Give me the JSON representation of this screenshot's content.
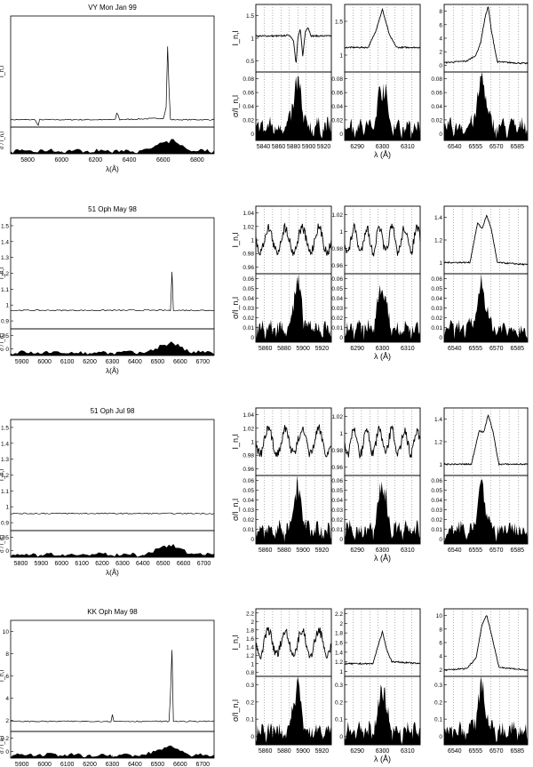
{
  "figure": {
    "rows": [
      {
        "title": "VY Mon Jan 99",
        "overview": {
          "xlabel": "λ(Å)",
          "ylabel_top": "I_n,l",
          "ylabel_bottom": "σ / I_n,l",
          "xticks": [
            "5800",
            "6000",
            "6200",
            "6400",
            "6600",
            "6800"
          ],
          "yticks_top": [],
          "yticks_bottom": []
        },
        "zooms": [
          {
            "xticks": [
              "5840",
              "5860",
              "5880",
              "5900",
              "5920"
            ],
            "yticks_top": [
              "0.5",
              "1",
              "1.5"
            ],
            "yticks_bottom": [
              "0",
              "0.02",
              "0.04",
              "0.06",
              "0.08"
            ],
            "ylabel_top": "I_n,l",
            "ylabel_bottom": "σ/I_n,l"
          },
          {
            "xticks": [
              "6290",
              "6300",
              "6310"
            ],
            "yticks_top": [
              "1",
              "1.5"
            ],
            "yticks_bottom": [
              "0",
              "0.02",
              "0.04",
              "0.06",
              "0.08"
            ]
          },
          {
            "xticks": [
              "6540",
              "6555",
              "6570",
              "6585"
            ],
            "yticks_top": [
              "0",
              "2",
              "4",
              "6",
              "8"
            ],
            "yticks_bottom": [
              "0",
              "0.02",
              "0.04",
              "0.06",
              "0.08"
            ]
          }
        ]
      },
      {
        "title": "51 Oph May 98",
        "overview": {
          "xlabel": "λ(Å)",
          "ylabel_top": "I_n,l",
          "ylabel_bottom": "σ / I_n,l",
          "xticks": [
            "5900",
            "6000",
            "6100",
            "6200",
            "6300",
            "6400",
            "6500",
            "6600",
            "6700"
          ],
          "yticks_top": [
            "0.9",
            "1",
            "1.1",
            "1.2",
            "1.3",
            "1.4",
            "1.5"
          ],
          "yticks_bottom": [
            "0",
            "0.05"
          ]
        },
        "zooms": [
          {
            "xticks": [
              "5860",
              "5880",
              "5900",
              "5920"
            ],
            "yticks_top": [
              "0.96",
              "0.98",
              "1",
              "1.02",
              "1.04"
            ],
            "yticks_bottom": [
              "0",
              "0.01",
              "0.02",
              "0.03",
              "0.04",
              "0.05",
              "0.06"
            ],
            "ylabel_top": "I_n,l",
            "ylabel_bottom": "σ/I_n,l"
          },
          {
            "xticks": [
              "6290",
              "6300",
              "6310"
            ],
            "yticks_top": [
              "0.96",
              "0.98",
              "1",
              "1.02"
            ],
            "yticks_bottom": [
              "0",
              "0.01",
              "0.02",
              "0.03",
              "0.04",
              "0.05",
              "0.06"
            ]
          },
          {
            "xticks": [
              "6540",
              "6555",
              "6570",
              "6585"
            ],
            "yticks_top": [
              "1",
              "1.2",
              "1.4"
            ],
            "yticks_bottom": [
              "0",
              "0.01",
              "0.02",
              "0.03",
              "0.04",
              "0.05",
              "0.06"
            ]
          }
        ]
      },
      {
        "title": "51 Oph Jul 98",
        "overview": {
          "xlabel": "λ(Å)",
          "ylabel_top": "I_n,l",
          "ylabel_bottom": "σ / I_n,l",
          "xticks": [
            "5800",
            "5900",
            "6000",
            "6100",
            "6200",
            "6300",
            "6400",
            "6500",
            "6600",
            "6700"
          ],
          "yticks_top": [
            "0.9",
            "1",
            "1.1",
            "1.2",
            "1.3",
            "1.4",
            "1.5"
          ],
          "yticks_bottom": [
            "0",
            "0.05"
          ]
        },
        "zooms": [
          {
            "xticks": [
              "5860",
              "5880",
              "5900",
              "5920"
            ],
            "yticks_top": [
              "0.96",
              "0.98",
              "1",
              "1.02",
              "1.04"
            ],
            "yticks_bottom": [
              "0",
              "0.01",
              "0.02",
              "0.03",
              "0.04",
              "0.05",
              "0.06"
            ],
            "ylabel_top": "I_n,l",
            "ylabel_bottom": "σ/I_n,l"
          },
          {
            "xticks": [
              "6290",
              "6300",
              "6310"
            ],
            "yticks_top": [
              "0.96",
              "0.98",
              "1",
              "1.02"
            ],
            "yticks_bottom": [
              "0",
              "0.01",
              "0.02",
              "0.03",
              "0.04",
              "0.05",
              "0.06"
            ]
          },
          {
            "xticks": [
              "6540",
              "6555",
              "6570",
              "6585"
            ],
            "yticks_top": [
              "1",
              "1.2",
              "1.4"
            ],
            "yticks_bottom": [
              "0",
              "0.01",
              "0.02",
              "0.03",
              "0.04",
              "0.05",
              "0.06"
            ]
          }
        ]
      },
      {
        "title": "KK Oph May 98",
        "overview": {
          "xlabel": "λ(Å)",
          "ylabel_top": "I_n,l",
          "ylabel_bottom": "σ / I_n,l",
          "xticks": [
            "5900",
            "6000",
            "6100",
            "6200",
            "6300",
            "6400",
            "6500",
            "6600",
            "6700"
          ],
          "yticks_top": [
            "2",
            "4",
            "6",
            "8",
            "10"
          ],
          "yticks_bottom": [
            "0",
            "0.2"
          ]
        },
        "zooms": [
          {
            "xticks": [
              "5860",
              "5880",
              "5900",
              "5920"
            ],
            "yticks_top": [
              "0.8",
              "1",
              "1.2",
              "1.4",
              "1.6",
              "1.8",
              "2",
              "2.2"
            ],
            "yticks_bottom": [
              "0",
              "0.1",
              "0.2",
              "0.3"
            ],
            "ylabel_top": "I_n,l",
            "ylabel_bottom": "σ/I_n,l"
          },
          {
            "xticks": [
              "6290",
              "6300",
              "6310"
            ],
            "yticks_top": [
              "1",
              "1.2",
              "1.4",
              "1.6",
              "1.8",
              "2",
              "2.2"
            ],
            "yticks_bottom": [
              "0",
              "0.1",
              "0.2",
              "0.3"
            ]
          },
          {
            "xticks": [
              "6540",
              "6555",
              "6570",
              "6585"
            ],
            "yticks_top": [
              "2",
              "4",
              "6",
              "8",
              "10"
            ],
            "yticks_bottom": [
              "0",
              "0.1",
              "0.2",
              "0.3"
            ]
          }
        ]
      }
    ],
    "shared_xlabel": "λ (Å)"
  },
  "chart_data": [
    {
      "type": "line",
      "title": "VY Mon Jan 99",
      "panel": "overview",
      "xlim": [
        5750,
        6800
      ],
      "ylim": [
        0.5,
        8
      ],
      "series": [
        {
          "x": [
            5750,
            5880,
            5890,
            5900,
            6290,
            6300,
            6310,
            6540,
            6555,
            6562,
            6570,
            6800
          ],
          "y": [
            1,
            1,
            0.5,
            1,
            1,
            1.6,
            1,
            1.1,
            2,
            7.5,
            1,
            1
          ]
        }
      ]
    },
    {
      "type": "line",
      "title": "VY Mon Jan 99",
      "panel": "Na D",
      "xlim": [
        5840,
        5930
      ],
      "ylim": [
        0.2,
        1.7
      ],
      "series": [
        {
          "x": [
            5840,
            5870,
            5880,
            5885,
            5888,
            5890,
            5893,
            5896,
            5899,
            5902,
            5906,
            5930
          ],
          "y": [
            1,
            1,
            1.02,
            0.9,
            0.35,
            0.95,
            1.15,
            0.55,
            1.1,
            1.2,
            1,
            1
          ]
        }
      ]
    },
    {
      "type": "line",
      "title": "VY Mon Jan 99",
      "panel": "[O I] 6300",
      "xlim": [
        6284,
        6316
      ],
      "ylim": [
        0.6,
        1.7
      ],
      "series": [
        {
          "x": [
            6284,
            6294,
            6297,
            6300,
            6303,
            6306,
            6316
          ],
          "y": [
            1,
            1,
            1.25,
            1.62,
            1.2,
            1,
            1
          ]
        }
      ]
    },
    {
      "type": "line",
      "title": "VY Mon Jan 99",
      "panel": "Hα",
      "xlim": [
        6535,
        6590
      ],
      "ylim": [
        0,
        8
      ],
      "series": [
        {
          "x": [
            6535,
            6550,
            6556,
            6559,
            6562,
            6564,
            6566,
            6570,
            6590
          ],
          "y": [
            1.1,
            1.3,
            2.0,
            3.5,
            6.5,
            7.8,
            5.0,
            1.2,
            1
          ]
        }
      ]
    },
    {
      "type": "line",
      "title": "51 Oph May 98",
      "panel": "overview",
      "xlim": [
        5850,
        6750
      ],
      "ylim": [
        0.9,
        1.5
      ],
      "series": [
        {
          "x": [
            5850,
            6560,
            6562,
            6565,
            6750
          ],
          "y": [
            1,
            1,
            1.43,
            1,
            1
          ]
        }
      ]
    },
    {
      "type": "line",
      "title": "51 Oph May 98",
      "panel": "Hα",
      "xlim": [
        6535,
        6590
      ],
      "ylim": [
        0.9,
        1.5
      ],
      "series": [
        {
          "x": [
            6535,
            6552,
            6557,
            6560,
            6563,
            6566,
            6570,
            6590
          ],
          "y": [
            1,
            1,
            1.35,
            1.3,
            1.42,
            1.3,
            1,
            0.98
          ]
        }
      ]
    },
    {
      "type": "line",
      "title": "51 Oph Jul 98",
      "panel": "overview",
      "xlim": [
        5750,
        6800
      ],
      "ylim": [
        0.9,
        1.55
      ],
      "series": [
        {
          "x": [
            5750,
            6560,
            6562,
            6565,
            6800
          ],
          "y": [
            1,
            1,
            1.5,
            1,
            1
          ]
        }
      ]
    },
    {
      "type": "line",
      "title": "51 Oph Jul 98",
      "panel": "Hα",
      "xlim": [
        6535,
        6590
      ],
      "ylim": [
        0.9,
        1.5
      ],
      "series": [
        {
          "x": [
            6535,
            6553,
            6558,
            6561,
            6564,
            6567,
            6571,
            6590
          ],
          "y": [
            1,
            1,
            1.3,
            1.28,
            1.44,
            1.3,
            1,
            1
          ]
        }
      ]
    },
    {
      "type": "line",
      "title": "KK Oph May 98",
      "panel": "overview",
      "xlim": [
        5850,
        6750
      ],
      "ylim": [
        0,
        11
      ],
      "series": [
        {
          "x": [
            5850,
            6295,
            6300,
            6305,
            6555,
            6562,
            6570,
            6750
          ],
          "y": [
            1,
            1,
            1.7,
            1,
            1,
            9.8,
            1,
            1
          ]
        }
      ]
    },
    {
      "type": "line",
      "title": "KK Oph May 98",
      "panel": "[O I] 6300",
      "xlim": [
        6284,
        6316
      ],
      "ylim": [
        0.7,
        2.3
      ],
      "series": [
        {
          "x": [
            6284,
            6296,
            6298,
            6300,
            6302,
            6304,
            6316
          ],
          "y": [
            1,
            1,
            1.4,
            1.75,
            1.3,
            1.05,
            1
          ]
        }
      ]
    },
    {
      "type": "line",
      "title": "KK Oph May 98",
      "panel": "Hα",
      "xlim": [
        6535,
        6590
      ],
      "ylim": [
        0,
        11
      ],
      "series": [
        {
          "x": [
            6535,
            6550,
            6556,
            6560,
            6563,
            6566,
            6571,
            6590
          ],
          "y": [
            1,
            1.3,
            3,
            8.5,
            10,
            7,
            1.5,
            1
          ]
        }
      ]
    }
  ]
}
